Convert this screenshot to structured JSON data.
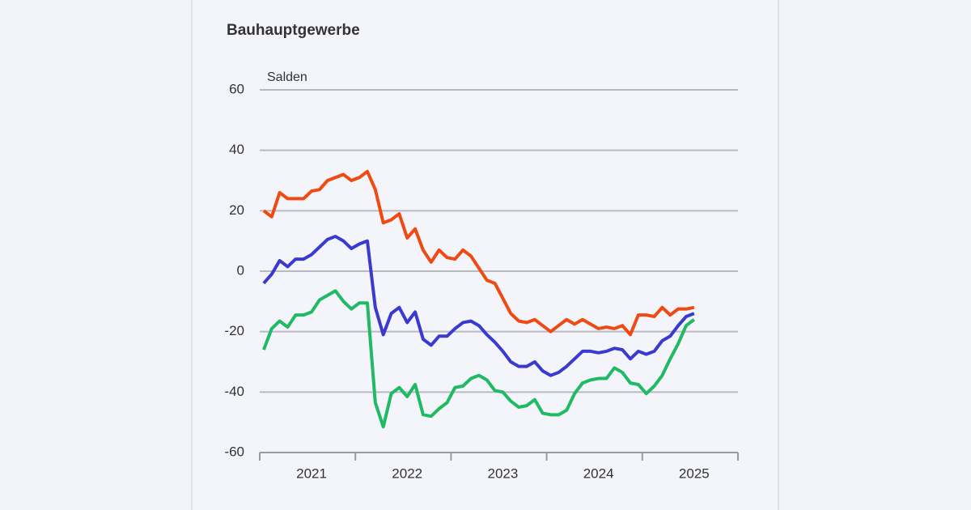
{
  "chart_data": {
    "type": "line",
    "title": "Bauhauptgewerbe",
    "y_label": "Salden",
    "categories": [
      null,
      null,
      null,
      null,
      null,
      null,
      "2021",
      null,
      null,
      null,
      null,
      null,
      null,
      null,
      null,
      null,
      null,
      null,
      "2022",
      null,
      null,
      null,
      null,
      null,
      null,
      null,
      null,
      null,
      null,
      null,
      "2023",
      null,
      null,
      null,
      null,
      null,
      null,
      null,
      null,
      null,
      null,
      null,
      "2024",
      null,
      null,
      null,
      null,
      null,
      null,
      null,
      null,
      null,
      null,
      null,
      "2025"
    ],
    "series": [
      {
        "color": "#f04a14",
        "values": [
          20,
          18,
          26,
          24,
          24,
          24,
          26.5,
          27,
          30,
          31,
          32,
          30,
          31,
          33,
          27,
          16,
          17,
          19,
          11,
          14,
          7,
          3,
          7,
          4.5,
          4,
          7,
          5,
          1,
          -3,
          -4,
          -9,
          -14,
          -16.5,
          -17,
          -16,
          -18,
          -20,
          -18,
          -16,
          -17.5,
          -16,
          -17.5,
          -19,
          -18.5,
          -19,
          -18,
          -21,
          -14.5,
          -14.5,
          -15,
          -12,
          -14.5,
          -12.5,
          -12.5,
          -12
        ]
      },
      {
        "color": "#3a3ad0",
        "values": [
          -4,
          -1,
          3.5,
          1.5,
          4,
          4,
          5.5,
          8,
          10.5,
          11.5,
          10,
          7.5,
          9,
          10,
          -12,
          -21,
          -14,
          -12,
          -17,
          -13.5,
          -22.5,
          -24.5,
          -21.5,
          -21.5,
          -19,
          -17,
          -16.5,
          -18,
          -21,
          -23.5,
          -26.5,
          -30,
          -31.5,
          -31.5,
          -30,
          -33,
          -34.5,
          -33.5,
          -31.5,
          -29,
          -26.5,
          -26.5,
          -27,
          -26.5,
          -25.5,
          -26,
          -29,
          -26.5,
          -27.5,
          -26.5,
          -23,
          -21.5,
          -18,
          -15,
          -14
        ]
      },
      {
        "color": "#1fba63",
        "values": [
          -26,
          -19,
          -16.5,
          -18.5,
          -14.5,
          -14.5,
          -13.5,
          -9.5,
          -8,
          -6.5,
          -10,
          -12.5,
          -10.5,
          -10.5,
          -43.5,
          -51.5,
          -40.5,
          -38.5,
          -41.5,
          -37.5,
          -47.5,
          -48,
          -45.5,
          -43.5,
          -38.5,
          -38,
          -35.5,
          -34.5,
          -36,
          -39.5,
          -40,
          -43,
          -45,
          -44.5,
          -42.5,
          -47,
          -47.5,
          -47.5,
          -46,
          -40.5,
          -37,
          -36,
          -35.5,
          -35.5,
          -32,
          -33.5,
          -37,
          -37.5,
          -40.5,
          -38,
          -34.5,
          -29,
          -24,
          -18,
          -16
        ]
      }
    ],
    "ylim": [
      -60,
      60
    ],
    "yticks": [
      -60,
      -40,
      -20,
      0,
      20,
      40,
      60
    ],
    "grid": true
  }
}
